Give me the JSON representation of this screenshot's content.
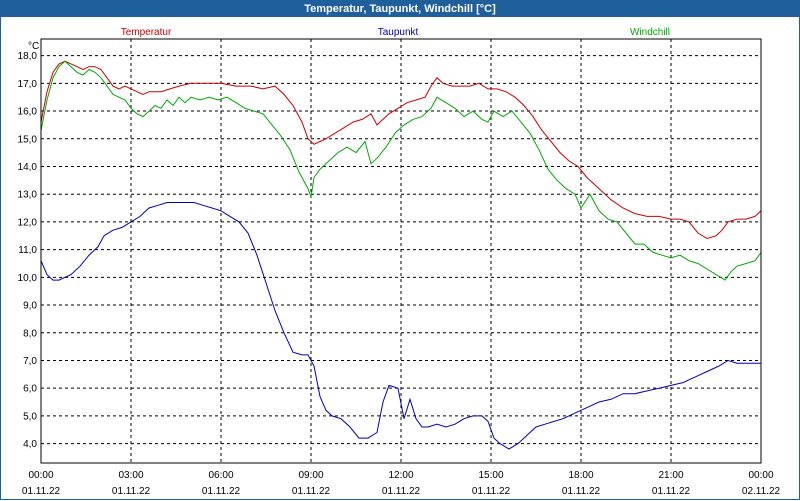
{
  "window": {
    "title": "Temperatur, Taupunkt, Windchill [°C]"
  },
  "chart_data": {
    "type": "line",
    "title": "Temperatur, Taupunkt, Windchill [°C]",
    "ylabel": "°C",
    "xlabel": "",
    "grid": true,
    "ylim": [
      3.3,
      18.6
    ],
    "yticks": [
      4.0,
      5.0,
      6.0,
      7.0,
      8.0,
      9.0,
      10.0,
      11.0,
      12.0,
      13.0,
      14.0,
      15.0,
      16.0,
      17.0,
      18.0
    ],
    "ytick_labels": [
      "4,0",
      "5,0",
      "6,0",
      "7,0",
      "8,0",
      "9,0",
      "10,0",
      "11,0",
      "12,0",
      "13,0",
      "14,0",
      "15,0",
      "16,0",
      "17,0",
      "18,0"
    ],
    "xlim": [
      0,
      24
    ],
    "xticks": [
      0,
      3,
      6,
      9,
      12,
      15,
      18,
      21,
      24
    ],
    "xtick_time_labels": [
      "00:00",
      "03:00",
      "06:00",
      "09:00",
      "12:00",
      "15:00",
      "18:00",
      "21:00",
      "00:00"
    ],
    "xtick_date_labels": [
      "01.11.22",
      "01.11.22",
      "01.11.22",
      "01.11.22",
      "01.11.22",
      "01.11.22",
      "01.11.22",
      "01.11.22",
      "02.11.22"
    ],
    "series": [
      {
        "name": "Temperatur",
        "color": "#cc0000",
        "points": [
          [
            0.0,
            15.6
          ],
          [
            0.2,
            16.7
          ],
          [
            0.4,
            17.4
          ],
          [
            0.6,
            17.7
          ],
          [
            0.8,
            17.8
          ],
          [
            1.0,
            17.7
          ],
          [
            1.2,
            17.6
          ],
          [
            1.4,
            17.5
          ],
          [
            1.6,
            17.6
          ],
          [
            1.8,
            17.6
          ],
          [
            2.0,
            17.5
          ],
          [
            2.2,
            17.2
          ],
          [
            2.4,
            16.9
          ],
          [
            2.6,
            16.8
          ],
          [
            2.8,
            16.9
          ],
          [
            3.0,
            16.8
          ],
          [
            3.2,
            16.7
          ],
          [
            3.4,
            16.6
          ],
          [
            3.6,
            16.7
          ],
          [
            3.8,
            16.7
          ],
          [
            4.0,
            16.7
          ],
          [
            4.3,
            16.8
          ],
          [
            4.6,
            16.9
          ],
          [
            5.0,
            17.0
          ],
          [
            5.5,
            17.0
          ],
          [
            6.0,
            17.0
          ],
          [
            6.5,
            16.9
          ],
          [
            7.0,
            16.9
          ],
          [
            7.4,
            16.8
          ],
          [
            7.8,
            16.9
          ],
          [
            8.1,
            16.6
          ],
          [
            8.4,
            16.2
          ],
          [
            8.7,
            15.6
          ],
          [
            8.9,
            15.0
          ],
          [
            9.1,
            14.8
          ],
          [
            9.3,
            14.9
          ],
          [
            9.5,
            15.0
          ],
          [
            9.8,
            15.2
          ],
          [
            10.1,
            15.4
          ],
          [
            10.4,
            15.6
          ],
          [
            10.7,
            15.7
          ],
          [
            11.0,
            15.9
          ],
          [
            11.2,
            15.5
          ],
          [
            11.4,
            15.7
          ],
          [
            11.6,
            15.9
          ],
          [
            11.9,
            16.1
          ],
          [
            12.2,
            16.3
          ],
          [
            12.5,
            16.4
          ],
          [
            12.8,
            16.5
          ],
          [
            13.0,
            16.9
          ],
          [
            13.2,
            17.2
          ],
          [
            13.4,
            17.0
          ],
          [
            13.7,
            16.9
          ],
          [
            14.0,
            16.9
          ],
          [
            14.3,
            16.9
          ],
          [
            14.6,
            17.0
          ],
          [
            14.9,
            16.8
          ],
          [
            15.2,
            16.8
          ],
          [
            15.5,
            16.7
          ],
          [
            15.8,
            16.5
          ],
          [
            16.1,
            16.2
          ],
          [
            16.4,
            15.8
          ],
          [
            16.7,
            15.3
          ],
          [
            17.0,
            14.9
          ],
          [
            17.3,
            14.5
          ],
          [
            17.6,
            14.2
          ],
          [
            17.9,
            14.0
          ],
          [
            18.2,
            13.6
          ],
          [
            18.6,
            13.2
          ],
          [
            19.0,
            12.8
          ],
          [
            19.4,
            12.5
          ],
          [
            19.8,
            12.3
          ],
          [
            20.2,
            12.2
          ],
          [
            20.6,
            12.2
          ],
          [
            21.0,
            12.1
          ],
          [
            21.3,
            12.1
          ],
          [
            21.6,
            12.0
          ],
          [
            21.9,
            11.6
          ],
          [
            22.2,
            11.4
          ],
          [
            22.5,
            11.5
          ],
          [
            22.7,
            11.7
          ],
          [
            22.9,
            12.0
          ],
          [
            23.2,
            12.1
          ],
          [
            23.5,
            12.1
          ],
          [
            23.8,
            12.2
          ],
          [
            24.0,
            12.4
          ]
        ]
      },
      {
        "name": "Taupunkt",
        "color": "#0000bb",
        "points": [
          [
            0.0,
            10.6
          ],
          [
            0.2,
            10.1
          ],
          [
            0.4,
            9.9
          ],
          [
            0.6,
            9.9
          ],
          [
            0.8,
            10.0
          ],
          [
            1.0,
            10.1
          ],
          [
            1.3,
            10.4
          ],
          [
            1.6,
            10.8
          ],
          [
            1.9,
            11.1
          ],
          [
            2.1,
            11.5
          ],
          [
            2.4,
            11.7
          ],
          [
            2.7,
            11.8
          ],
          [
            3.0,
            12.0
          ],
          [
            3.3,
            12.2
          ],
          [
            3.6,
            12.5
          ],
          [
            3.9,
            12.6
          ],
          [
            4.2,
            12.7
          ],
          [
            4.5,
            12.7
          ],
          [
            4.8,
            12.7
          ],
          [
            5.1,
            12.7
          ],
          [
            5.4,
            12.6
          ],
          [
            5.7,
            12.5
          ],
          [
            6.0,
            12.4
          ],
          [
            6.3,
            12.2
          ],
          [
            6.6,
            12.0
          ],
          [
            6.9,
            11.6
          ],
          [
            7.2,
            10.8
          ],
          [
            7.5,
            9.8
          ],
          [
            7.8,
            8.8
          ],
          [
            8.1,
            8.0
          ],
          [
            8.4,
            7.3
          ],
          [
            8.7,
            7.2
          ],
          [
            8.9,
            7.2
          ],
          [
            9.1,
            6.8
          ],
          [
            9.3,
            5.7
          ],
          [
            9.5,
            5.2
          ],
          [
            9.7,
            5.0
          ],
          [
            10.0,
            4.9
          ],
          [
            10.3,
            4.6
          ],
          [
            10.6,
            4.2
          ],
          [
            10.9,
            4.2
          ],
          [
            11.2,
            4.4
          ],
          [
            11.4,
            5.5
          ],
          [
            11.6,
            6.1
          ],
          [
            11.9,
            6.0
          ],
          [
            12.1,
            4.9
          ],
          [
            12.3,
            5.6
          ],
          [
            12.5,
            4.9
          ],
          [
            12.7,
            4.6
          ],
          [
            12.9,
            4.6
          ],
          [
            13.2,
            4.7
          ],
          [
            13.5,
            4.6
          ],
          [
            13.8,
            4.7
          ],
          [
            14.1,
            4.9
          ],
          [
            14.4,
            5.0
          ],
          [
            14.7,
            5.0
          ],
          [
            14.9,
            4.8
          ],
          [
            15.1,
            4.2
          ],
          [
            15.3,
            4.0
          ],
          [
            15.6,
            3.8
          ],
          [
            15.9,
            4.0
          ],
          [
            16.2,
            4.3
          ],
          [
            16.5,
            4.6
          ],
          [
            16.8,
            4.7
          ],
          [
            17.1,
            4.8
          ],
          [
            17.4,
            4.9
          ],
          [
            17.8,
            5.1
          ],
          [
            18.2,
            5.3
          ],
          [
            18.6,
            5.5
          ],
          [
            19.0,
            5.6
          ],
          [
            19.4,
            5.8
          ],
          [
            19.8,
            5.8
          ],
          [
            20.2,
            5.9
          ],
          [
            20.6,
            6.0
          ],
          [
            21.0,
            6.1
          ],
          [
            21.4,
            6.2
          ],
          [
            21.8,
            6.4
          ],
          [
            22.2,
            6.6
          ],
          [
            22.6,
            6.8
          ],
          [
            22.9,
            7.0
          ],
          [
            23.2,
            6.9
          ],
          [
            23.5,
            6.9
          ],
          [
            24.0,
            6.9
          ]
        ]
      },
      {
        "name": "Windchill",
        "color": "#00aa00",
        "points": [
          [
            0.0,
            15.3
          ],
          [
            0.2,
            16.4
          ],
          [
            0.4,
            17.2
          ],
          [
            0.6,
            17.6
          ],
          [
            0.8,
            17.8
          ],
          [
            1.0,
            17.6
          ],
          [
            1.2,
            17.4
          ],
          [
            1.4,
            17.3
          ],
          [
            1.6,
            17.5
          ],
          [
            1.8,
            17.4
          ],
          [
            2.0,
            17.2
          ],
          [
            2.2,
            16.9
          ],
          [
            2.4,
            16.6
          ],
          [
            2.6,
            16.5
          ],
          [
            2.8,
            16.4
          ],
          [
            3.0,
            16.1
          ],
          [
            3.2,
            15.9
          ],
          [
            3.4,
            15.8
          ],
          [
            3.6,
            16.0
          ],
          [
            3.8,
            16.2
          ],
          [
            4.0,
            16.1
          ],
          [
            4.2,
            16.4
          ],
          [
            4.4,
            16.2
          ],
          [
            4.6,
            16.5
          ],
          [
            4.8,
            16.3
          ],
          [
            5.0,
            16.5
          ],
          [
            5.3,
            16.4
          ],
          [
            5.6,
            16.5
          ],
          [
            5.9,
            16.4
          ],
          [
            6.2,
            16.5
          ],
          [
            6.5,
            16.3
          ],
          [
            6.8,
            16.1
          ],
          [
            7.1,
            16.0
          ],
          [
            7.4,
            15.9
          ],
          [
            7.7,
            15.5
          ],
          [
            8.0,
            15.1
          ],
          [
            8.3,
            14.6
          ],
          [
            8.6,
            13.8
          ],
          [
            8.9,
            13.2
          ],
          [
            9.0,
            12.9
          ],
          [
            9.1,
            13.6
          ],
          [
            9.3,
            13.9
          ],
          [
            9.6,
            14.2
          ],
          [
            9.9,
            14.5
          ],
          [
            10.2,
            14.7
          ],
          [
            10.5,
            14.5
          ],
          [
            10.8,
            14.9
          ],
          [
            11.0,
            14.1
          ],
          [
            11.2,
            14.3
          ],
          [
            11.5,
            14.7
          ],
          [
            11.8,
            15.2
          ],
          [
            12.1,
            15.5
          ],
          [
            12.4,
            15.7
          ],
          [
            12.7,
            15.8
          ],
          [
            13.0,
            16.1
          ],
          [
            13.2,
            16.5
          ],
          [
            13.5,
            16.3
          ],
          [
            13.8,
            16.1
          ],
          [
            14.1,
            15.8
          ],
          [
            14.4,
            16.0
          ],
          [
            14.7,
            15.7
          ],
          [
            14.9,
            15.6
          ],
          [
            15.1,
            16.0
          ],
          [
            15.4,
            15.8
          ],
          [
            15.7,
            16.0
          ],
          [
            16.0,
            15.6
          ],
          [
            16.3,
            15.2
          ],
          [
            16.6,
            14.6
          ],
          [
            16.9,
            13.9
          ],
          [
            17.2,
            13.5
          ],
          [
            17.5,
            13.2
          ],
          [
            17.8,
            13.0
          ],
          [
            18.0,
            12.5
          ],
          [
            18.3,
            13.0
          ],
          [
            18.6,
            12.4
          ],
          [
            18.9,
            12.1
          ],
          [
            19.2,
            12.0
          ],
          [
            19.5,
            11.6
          ],
          [
            19.8,
            11.2
          ],
          [
            20.1,
            11.2
          ],
          [
            20.4,
            10.9
          ],
          [
            20.7,
            10.8
          ],
          [
            21.0,
            10.7
          ],
          [
            21.3,
            10.8
          ],
          [
            21.6,
            10.6
          ],
          [
            21.9,
            10.5
          ],
          [
            22.2,
            10.3
          ],
          [
            22.5,
            10.1
          ],
          [
            22.8,
            9.9
          ],
          [
            23.0,
            10.2
          ],
          [
            23.2,
            10.4
          ],
          [
            23.5,
            10.5
          ],
          [
            23.8,
            10.6
          ],
          [
            24.0,
            10.9
          ]
        ]
      }
    ]
  }
}
